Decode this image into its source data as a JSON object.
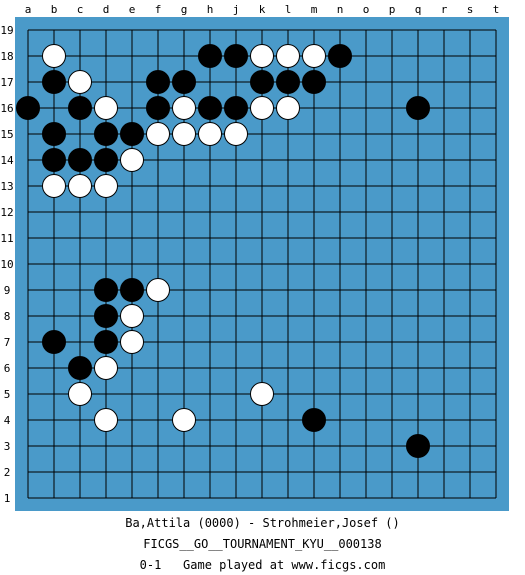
{
  "board": {
    "size": 19,
    "columns": [
      "a",
      "b",
      "c",
      "d",
      "e",
      "f",
      "g",
      "h",
      "j",
      "k",
      "l",
      "m",
      "n",
      "o",
      "p",
      "q",
      "r",
      "s",
      "t"
    ],
    "rows": [
      "19",
      "18",
      "17",
      "16",
      "15",
      "14",
      "13",
      "12",
      "11",
      "10",
      "9",
      "8",
      "7",
      "6",
      "5",
      "4",
      "3",
      "2",
      "1"
    ],
    "colors": {
      "board": "#4a9ac9",
      "grid": "#000000",
      "black_stone": "#000000",
      "white_stone": "#ffffff"
    },
    "stones": {
      "black": [
        "h18",
        "j18",
        "n18",
        "b17",
        "f17",
        "g17",
        "k17",
        "l17",
        "m17",
        "a16",
        "c16",
        "f16",
        "h16",
        "j16",
        "q16",
        "b15",
        "d15",
        "e15",
        "b14",
        "c14",
        "d14",
        "d9",
        "e9",
        "d8",
        "b7",
        "d7",
        "c6",
        "m4",
        "q3"
      ],
      "white": [
        "b18",
        "k18",
        "l18",
        "m18",
        "c17",
        "d16",
        "g16",
        "k16",
        "l16",
        "f15",
        "g15",
        "h15",
        "j15",
        "e14",
        "b13",
        "c13",
        "d13",
        "f9",
        "e8",
        "e7",
        "d6",
        "c5",
        "k5",
        "d4",
        "g4"
      ]
    }
  },
  "game": {
    "players": "Ba,Attila (0000) - Strohmeier,Josef ()",
    "tournament": "FICGS__GO__TOURNAMENT_KYU__000138",
    "result": "0-1",
    "site": "Game played at www.ficgs.com"
  }
}
